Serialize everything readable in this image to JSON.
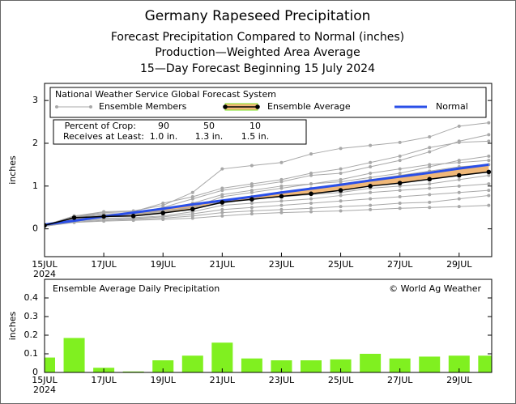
{
  "chart_data": [
    {
      "type": "line",
      "title": "Germany Rapeseed Precipitation",
      "subtitles": [
        "Forecast Precipitation Compared to Normal (inches)",
        "Production—Weighted Area Average",
        "15—Day Forecast Beginning 15 July 2024"
      ],
      "source": "National Weather Service Global Forecast System",
      "ylabel": "inches",
      "x": [
        15,
        16,
        17,
        18,
        19,
        20,
        21,
        22,
        23,
        24,
        25,
        26,
        27,
        28,
        29,
        30
      ],
      "xlim": [
        15,
        30.1
      ],
      "xticks": [
        {
          "value": 15,
          "label": "15JUL"
        },
        {
          "value": 17,
          "label": "17JUL"
        },
        {
          "value": 19,
          "label": "19JUL"
        },
        {
          "value": 21,
          "label": "21JUL"
        },
        {
          "value": 23,
          "label": "23JUL"
        },
        {
          "value": 25,
          "label": "25JUL"
        },
        {
          "value": 27,
          "label": "27JUL"
        },
        {
          "value": 29,
          "label": "29JUL"
        }
      ],
      "xtick_sublabel": "2024",
      "ylim": [
        -0.65,
        3.4
      ],
      "yticks": [
        0,
        1,
        2,
        3
      ],
      "members": {
        "name": "Ensemble Members",
        "color": "#a8a8a8",
        "values": [
          [
            0.08,
            0.3,
            0.4,
            0.42,
            0.55,
            0.85,
            1.4,
            1.48,
            1.55,
            1.75,
            1.88,
            1.95,
            2.02,
            2.15,
            2.4,
            2.48
          ],
          [
            0.08,
            0.28,
            0.35,
            0.36,
            0.5,
            0.7,
            0.9,
            1.0,
            1.1,
            1.25,
            1.3,
            1.45,
            1.6,
            1.8,
            2.05,
            2.2
          ],
          [
            0.08,
            0.3,
            0.38,
            0.4,
            0.6,
            0.75,
            0.95,
            1.05,
            1.15,
            1.3,
            1.4,
            1.55,
            1.7,
            1.9,
            2.02,
            2.05
          ],
          [
            0.08,
            0.25,
            0.3,
            0.3,
            0.4,
            0.5,
            0.75,
            0.85,
            0.95,
            1.05,
            1.15,
            1.3,
            1.4,
            1.5,
            1.55,
            1.6
          ],
          [
            0.08,
            0.22,
            0.28,
            0.3,
            0.38,
            0.45,
            0.65,
            0.75,
            0.85,
            0.95,
            1.05,
            1.15,
            1.25,
            1.35,
            1.45,
            1.5
          ],
          [
            0.08,
            0.28,
            0.32,
            0.33,
            0.42,
            0.5,
            0.6,
            0.7,
            0.75,
            0.8,
            0.85,
            0.95,
            1.0,
            1.05,
            1.15,
            1.25
          ],
          [
            0.08,
            0.2,
            0.25,
            0.26,
            0.3,
            0.4,
            0.55,
            0.6,
            0.65,
            0.7,
            0.78,
            0.85,
            0.9,
            0.95,
            1.0,
            1.05
          ],
          [
            0.06,
            0.18,
            0.22,
            0.24,
            0.28,
            0.35,
            0.45,
            0.5,
            0.55,
            0.6,
            0.65,
            0.7,
            0.75,
            0.8,
            0.85,
            0.9
          ],
          [
            0.06,
            0.16,
            0.2,
            0.22,
            0.25,
            0.3,
            0.38,
            0.42,
            0.45,
            0.48,
            0.52,
            0.55,
            0.6,
            0.62,
            0.7,
            0.78
          ],
          [
            0.06,
            0.15,
            0.18,
            0.2,
            0.22,
            0.25,
            0.3,
            0.35,
            0.38,
            0.4,
            0.42,
            0.45,
            0.48,
            0.5,
            0.52,
            0.55
          ],
          [
            0.08,
            0.3,
            0.35,
            0.35,
            0.45,
            0.6,
            0.8,
            0.9,
            1.0,
            1.05,
            1.1,
            1.2,
            1.3,
            1.45,
            1.6,
            1.7
          ]
        ]
      },
      "series": [
        {
          "name": "Ensemble Average",
          "color": "#000000",
          "band_color": "#f0b878",
          "values": [
            0.08,
            0.26,
            0.29,
            0.3,
            0.37,
            0.46,
            0.62,
            0.69,
            0.76,
            0.82,
            0.9,
            1.0,
            1.07,
            1.16,
            1.25,
            1.33
          ]
        },
        {
          "name": "Normal",
          "color": "#2a4fe8",
          "values": [
            0.1,
            0.19,
            0.29,
            0.38,
            0.47,
            0.57,
            0.66,
            0.75,
            0.85,
            0.94,
            1.03,
            1.13,
            1.22,
            1.31,
            1.41,
            1.5
          ]
        }
      ],
      "table": {
        "rows": [
          [
            "Percent of Crop:",
            "90",
            "50",
            "10"
          ],
          [
            "Receives at Least:",
            "1.0 in.",
            "1.3 in.",
            "1.5 in."
          ]
        ]
      }
    },
    {
      "type": "bar",
      "title": "Ensemble Average Daily Precipitation",
      "credit": "© World Ag Weather",
      "ylabel": "inches",
      "x": [
        15,
        16,
        17,
        18,
        19,
        20,
        21,
        22,
        23,
        24,
        25,
        26,
        27,
        28,
        29,
        30
      ],
      "values": [
        0.08,
        0.185,
        0.025,
        0.005,
        0.065,
        0.09,
        0.16,
        0.075,
        0.065,
        0.065,
        0.07,
        0.1,
        0.075,
        0.085,
        0.09,
        0.09
      ],
      "color": "#80f020",
      "xlim": [
        15,
        30.1
      ],
      "xticks": [
        {
          "value": 15,
          "label": "15JUL"
        },
        {
          "value": 17,
          "label": "17JUL"
        },
        {
          "value": 19,
          "label": "19JUL"
        },
        {
          "value": 21,
          "label": "21JUL"
        },
        {
          "value": 23,
          "label": "23JUL"
        },
        {
          "value": 25,
          "label": "25JUL"
        },
        {
          "value": 27,
          "label": "27JUL"
        },
        {
          "value": 29,
          "label": "29JUL"
        }
      ],
      "xtick_sublabel": "2024",
      "ylim": [
        0,
        0.5
      ],
      "yticks": [
        0,
        0.1,
        0.2,
        0.3,
        0.4
      ]
    }
  ]
}
